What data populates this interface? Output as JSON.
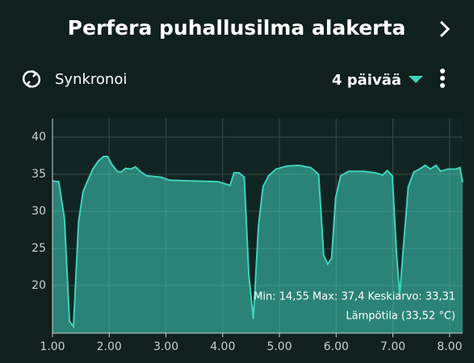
{
  "header": {
    "title": "Perfera puhallusilma alakerta"
  },
  "toolbar": {
    "sync": "Synkronoi",
    "period": "4 päivää"
  },
  "chart_data": {
    "type": "area",
    "annotations": [
      "Min: 14,55 Max: 37,4 Keskiarvo: 33,31",
      "Lämpötila (33,52 °C)"
    ],
    "x": [
      1.0,
      1.11,
      1.21,
      1.3,
      1.37,
      1.46,
      1.54,
      1.71,
      1.81,
      1.9,
      1.97,
      2.04,
      2.14,
      2.21,
      2.29,
      2.38,
      2.46,
      2.56,
      2.66,
      2.92,
      3.06,
      3.49,
      3.92,
      4.13,
      4.2,
      4.29,
      4.38,
      4.46,
      4.54,
      4.63,
      4.71,
      4.81,
      4.94,
      5.13,
      5.34,
      5.55,
      5.69,
      5.78,
      5.85,
      5.92,
      5.99,
      6.08,
      6.22,
      6.48,
      6.69,
      6.82,
      6.9,
      6.99,
      7.06,
      7.12,
      7.17,
      7.27,
      7.37,
      7.47,
      7.57,
      7.66,
      7.76,
      7.84,
      7.97,
      8.11,
      8.18,
      8.23
    ],
    "series": [
      {
        "name": "Lämpötila",
        "color": "#3fd2bb",
        "values": [
          34.1,
          34.0,
          29.1,
          15.2,
          14.5,
          28.6,
          32.7,
          35.7,
          36.8,
          37.4,
          37.4,
          36.4,
          35.4,
          35.3,
          35.8,
          35.7,
          36.0,
          35.3,
          34.8,
          34.6,
          34.2,
          34.1,
          34.0,
          33.5,
          35.2,
          35.2,
          34.6,
          21.5,
          15.5,
          28.0,
          33.3,
          34.8,
          35.7,
          36.1,
          36.2,
          35.9,
          35.0,
          24.1,
          22.9,
          23.7,
          31.8,
          34.8,
          35.4,
          35.4,
          35.2,
          34.9,
          35.5,
          34.8,
          24.8,
          18.7,
          23.7,
          33.3,
          35.3,
          35.7,
          36.2,
          35.7,
          36.2,
          35.4,
          35.7,
          35.7,
          35.9,
          33.9
        ]
      }
    ],
    "xlim": [
      1.0,
      8.23
    ],
    "ylim": [
      13.6,
      42.5
    ],
    "xticks": [
      {
        "value": 1,
        "label": "1.00"
      },
      {
        "value": 2,
        "label": "2.00"
      },
      {
        "value": 3,
        "label": "3.00"
      },
      {
        "value": 4,
        "label": "4.00"
      },
      {
        "value": 5,
        "label": "5.00"
      },
      {
        "value": 6,
        "label": "6.00"
      },
      {
        "value": 7,
        "label": "7.00"
      },
      {
        "value": 8,
        "label": "8.00"
      }
    ],
    "yticks": [
      20,
      25,
      30,
      35,
      40
    ],
    "grid": true
  }
}
